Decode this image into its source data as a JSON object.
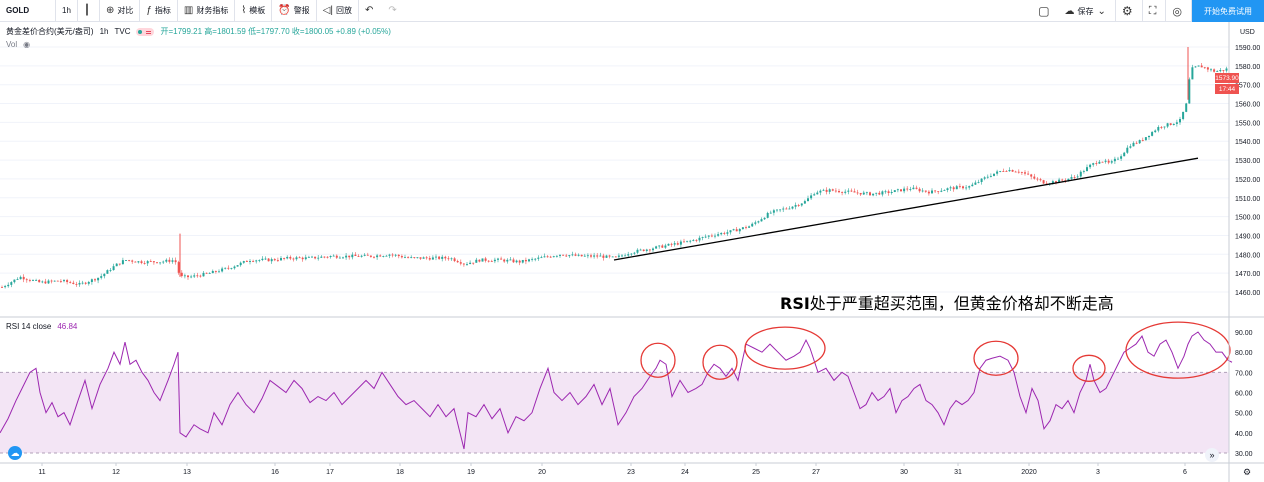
{
  "toolbar": {
    "symbol": "GOLD",
    "interval": "1h",
    "candle_icon": "candlestick-icon",
    "compare": "对比",
    "indicators": "指标",
    "financials": "财务指标",
    "templates": "模板",
    "alert": "警报",
    "replay": "回放",
    "save": "保存",
    "cta": "开始免费试用"
  },
  "legend": {
    "title": "黄金差价合约(美元/盎司)",
    "interval": "1h",
    "source": "TVC",
    "ohlc": "开=1799.21 高=1801.59 低=1797.70 收=1800.05 +0.89 (+0.05%)",
    "vol": "Vol"
  },
  "rsi_legend": {
    "name": "RSI 14 close",
    "value": "46.84"
  },
  "currency": "USD",
  "price_tag": {
    "last": "1573.90",
    "countdown": "17:44"
  },
  "annotation": {
    "bold": "RSI",
    "text": "处于严重超买范围，但黄金价格却不断走高"
  },
  "colors": {
    "up": "#26a69a",
    "down": "#ef5350",
    "rsi_line": "#9c27b0",
    "rsi_band": "#e1bee7",
    "circle": "#e53935",
    "trendline": "#000000"
  },
  "chart_data": [
    {
      "type": "candlestick",
      "title": "",
      "ylim": [
        1455,
        1595
      ],
      "y_ticks": [
        "1590.00",
        "1580.00",
        "1570.00",
        "1560.00",
        "1550.00",
        "1540.00",
        "1530.00",
        "1520.00",
        "1510.00",
        "1500.00",
        "1490.00",
        "1480.00",
        "1470.00",
        "1460.00"
      ],
      "close_trend": [
        [
          0,
          1462
        ],
        [
          20,
          1468
        ],
        [
          40,
          1465
        ],
        [
          60,
          1466
        ],
        [
          80,
          1464
        ],
        [
          100,
          1468
        ],
        [
          115,
          1474
        ],
        [
          125,
          1477
        ],
        [
          140,
          1476
        ],
        [
          160,
          1476
        ],
        [
          175,
          1477
        ],
        [
          180,
          1468
        ],
        [
          190,
          1468
        ],
        [
          210,
          1470
        ],
        [
          230,
          1473
        ],
        [
          250,
          1477
        ],
        [
          270,
          1477
        ],
        [
          290,
          1478
        ],
        [
          310,
          1478
        ],
        [
          330,
          1479
        ],
        [
          350,
          1479
        ],
        [
          370,
          1479
        ],
        [
          390,
          1480
        ],
        [
          410,
          1478
        ],
        [
          430,
          1478
        ],
        [
          450,
          1478
        ],
        [
          465,
          1475
        ],
        [
          480,
          1477
        ],
        [
          500,
          1477
        ],
        [
          520,
          1476
        ],
        [
          540,
          1478
        ],
        [
          560,
          1480
        ],
        [
          580,
          1479
        ],
        [
          600,
          1479
        ],
        [
          615,
          1478
        ],
        [
          630,
          1481
        ],
        [
          650,
          1483
        ],
        [
          670,
          1485
        ],
        [
          690,
          1487
        ],
        [
          710,
          1490
        ],
        [
          730,
          1492
        ],
        [
          750,
          1495
        ],
        [
          770,
          1502
        ],
        [
          790,
          1505
        ],
        [
          805,
          1508
        ],
        [
          815,
          1513
        ],
        [
          830,
          1514
        ],
        [
          850,
          1513
        ],
        [
          870,
          1512
        ],
        [
          890,
          1513
        ],
        [
          910,
          1515
        ],
        [
          930,
          1513
        ],
        [
          950,
          1515
        ],
        [
          970,
          1516
        ],
        [
          990,
          1522
        ],
        [
          1005,
          1525
        ],
        [
          1020,
          1524
        ],
        [
          1035,
          1520
        ],
        [
          1045,
          1518
        ],
        [
          1060,
          1519
        ],
        [
          1075,
          1521
        ],
        [
          1090,
          1527
        ],
        [
          1100,
          1530
        ],
        [
          1110,
          1528
        ],
        [
          1120,
          1532
        ],
        [
          1130,
          1538
        ],
        [
          1140,
          1540
        ],
        [
          1150,
          1544
        ],
        [
          1160,
          1548
        ],
        [
          1170,
          1549
        ],
        [
          1180,
          1551
        ],
        [
          1188,
          1562
        ],
        [
          1190,
          1578
        ],
        [
          1200,
          1580
        ],
        [
          1215,
          1577
        ],
        [
          1225,
          1578
        ],
        [
          1230,
          1579
        ]
      ],
      "trendline": [
        [
          614,
          1477
        ],
        [
          1198,
          1531
        ]
      ],
      "x_ticks": [
        [
          "11",
          42
        ],
        [
          "12",
          116
        ],
        [
          "13",
          187
        ],
        [
          "16",
          275
        ],
        [
          "17",
          330
        ],
        [
          "18",
          400
        ],
        [
          "19",
          471
        ],
        [
          "20",
          542
        ],
        [
          "23",
          631
        ],
        [
          "24",
          685
        ],
        [
          "25",
          756
        ],
        [
          "27",
          816
        ],
        [
          "30",
          904
        ],
        [
          "31",
          958
        ],
        [
          "2020",
          1029
        ],
        [
          "3",
          1098
        ],
        [
          "6",
          1185
        ]
      ]
    },
    {
      "type": "line",
      "title": "RSI 14 close",
      "ylim": [
        25,
        95
      ],
      "y_ticks": [
        "90.00",
        "80.00",
        "70.00",
        "60.00",
        "50.00",
        "40.00",
        "30.00"
      ],
      "band": [
        30,
        70
      ],
      "series": [
        [
          0,
          40
        ],
        [
          8,
          47
        ],
        [
          16,
          56
        ],
        [
          22,
          62
        ],
        [
          30,
          70
        ],
        [
          36,
          72
        ],
        [
          40,
          60
        ],
        [
          46,
          50
        ],
        [
          52,
          55
        ],
        [
          58,
          48
        ],
        [
          64,
          50
        ],
        [
          70,
          44
        ],
        [
          78,
          56
        ],
        [
          85,
          66
        ],
        [
          92,
          52
        ],
        [
          100,
          64
        ],
        [
          108,
          72
        ],
        [
          114,
          80
        ],
        [
          120,
          74
        ],
        [
          125,
          85
        ],
        [
          130,
          74
        ],
        [
          136,
          76
        ],
        [
          142,
          70
        ],
        [
          148,
          66
        ],
        [
          154,
          60
        ],
        [
          160,
          56
        ],
        [
          168,
          66
        ],
        [
          174,
          74
        ],
        [
          178,
          80
        ],
        [
          180,
          40
        ],
        [
          186,
          38
        ],
        [
          194,
          44
        ],
        [
          200,
          42
        ],
        [
          208,
          40
        ],
        [
          214,
          50
        ],
        [
          222,
          44
        ],
        [
          230,
          54
        ],
        [
          238,
          60
        ],
        [
          246,
          54
        ],
        [
          254,
          50
        ],
        [
          262,
          57
        ],
        [
          270,
          66
        ],
        [
          278,
          63
        ],
        [
          286,
          60
        ],
        [
          294,
          66
        ],
        [
          302,
          62
        ],
        [
          310,
          55
        ],
        [
          318,
          58
        ],
        [
          326,
          56
        ],
        [
          334,
          60
        ],
        [
          342,
          54
        ],
        [
          350,
          58
        ],
        [
          358,
          62
        ],
        [
          366,
          66
        ],
        [
          374,
          62
        ],
        [
          382,
          70
        ],
        [
          390,
          64
        ],
        [
          398,
          58
        ],
        [
          406,
          54
        ],
        [
          414,
          56
        ],
        [
          422,
          52
        ],
        [
          430,
          48
        ],
        [
          438,
          54
        ],
        [
          446,
          48
        ],
        [
          454,
          52
        ],
        [
          460,
          40
        ],
        [
          464,
          32
        ],
        [
          468,
          50
        ],
        [
          476,
          48
        ],
        [
          484,
          54
        ],
        [
          492,
          47
        ],
        [
          500,
          52
        ],
        [
          508,
          40
        ],
        [
          516,
          48
        ],
        [
          524,
          46
        ],
        [
          532,
          50
        ],
        [
          540,
          62
        ],
        [
          548,
          72
        ],
        [
          554,
          60
        ],
        [
          562,
          56
        ],
        [
          570,
          60
        ],
        [
          578,
          54
        ],
        [
          586,
          58
        ],
        [
          594,
          64
        ],
        [
          602,
          54
        ],
        [
          610,
          62
        ],
        [
          618,
          44
        ],
        [
          626,
          50
        ],
        [
          634,
          58
        ],
        [
          642,
          62
        ],
        [
          650,
          68
        ],
        [
          656,
          72
        ],
        [
          660,
          76
        ],
        [
          666,
          74
        ],
        [
          672,
          58
        ],
        [
          680,
          66
        ],
        [
          688,
          60
        ],
        [
          696,
          62
        ],
        [
          702,
          64
        ],
        [
          708,
          70
        ],
        [
          714,
          74
        ],
        [
          720,
          72
        ],
        [
          726,
          68
        ],
        [
          732,
          72
        ],
        [
          738,
          66
        ],
        [
          746,
          84
        ],
        [
          754,
          82
        ],
        [
          762,
          80
        ],
        [
          770,
          84
        ],
        [
          778,
          80
        ],
        [
          786,
          76
        ],
        [
          794,
          78
        ],
        [
          800,
          80
        ],
        [
          806,
          86
        ],
        [
          810,
          82
        ],
        [
          818,
          70
        ],
        [
          826,
          72
        ],
        [
          834,
          66
        ],
        [
          842,
          70
        ],
        [
          848,
          68
        ],
        [
          854,
          60
        ],
        [
          860,
          52
        ],
        [
          866,
          54
        ],
        [
          872,
          60
        ],
        [
          878,
          56
        ],
        [
          884,
          58
        ],
        [
          890,
          62
        ],
        [
          896,
          50
        ],
        [
          902,
          56
        ],
        [
          908,
          58
        ],
        [
          914,
          62
        ],
        [
          920,
          64
        ],
        [
          926,
          56
        ],
        [
          932,
          54
        ],
        [
          938,
          50
        ],
        [
          944,
          44
        ],
        [
          950,
          52
        ],
        [
          956,
          56
        ],
        [
          962,
          54
        ],
        [
          968,
          56
        ],
        [
          974,
          60
        ],
        [
          980,
          72
        ],
        [
          986,
          76
        ],
        [
          992,
          77
        ],
        [
          1000,
          78
        ],
        [
          1008,
          76
        ],
        [
          1014,
          70
        ],
        [
          1020,
          58
        ],
        [
          1026,
          50
        ],
        [
          1032,
          62
        ],
        [
          1038,
          56
        ],
        [
          1044,
          42
        ],
        [
          1050,
          46
        ],
        [
          1056,
          54
        ],
        [
          1062,
          52
        ],
        [
          1068,
          56
        ],
        [
          1074,
          50
        ],
        [
          1080,
          60
        ],
        [
          1086,
          66
        ],
        [
          1090,
          74
        ],
        [
          1094,
          66
        ],
        [
          1100,
          60
        ],
        [
          1106,
          62
        ],
        [
          1112,
          68
        ],
        [
          1118,
          74
        ],
        [
          1124,
          80
        ],
        [
          1130,
          82
        ],
        [
          1136,
          84
        ],
        [
          1142,
          88
        ],
        [
          1148,
          80
        ],
        [
          1154,
          78
        ],
        [
          1160,
          84
        ],
        [
          1166,
          86
        ],
        [
          1172,
          80
        ],
        [
          1178,
          72
        ],
        [
          1184,
          78
        ],
        [
          1188,
          84
        ],
        [
          1192,
          88
        ],
        [
          1198,
          90
        ],
        [
          1204,
          86
        ],
        [
          1210,
          84
        ],
        [
          1216,
          80
        ],
        [
          1222,
          80
        ],
        [
          1228,
          76
        ],
        [
          1232,
          75
        ]
      ],
      "circles": [
        [
          658,
          76,
          17,
          17
        ],
        [
          720,
          75,
          17,
          17
        ],
        [
          785,
          82,
          40,
          21
        ],
        [
          996,
          77,
          22,
          17
        ],
        [
          1089,
          72,
          16,
          13
        ],
        [
          1178,
          81,
          52,
          28
        ]
      ]
    }
  ]
}
